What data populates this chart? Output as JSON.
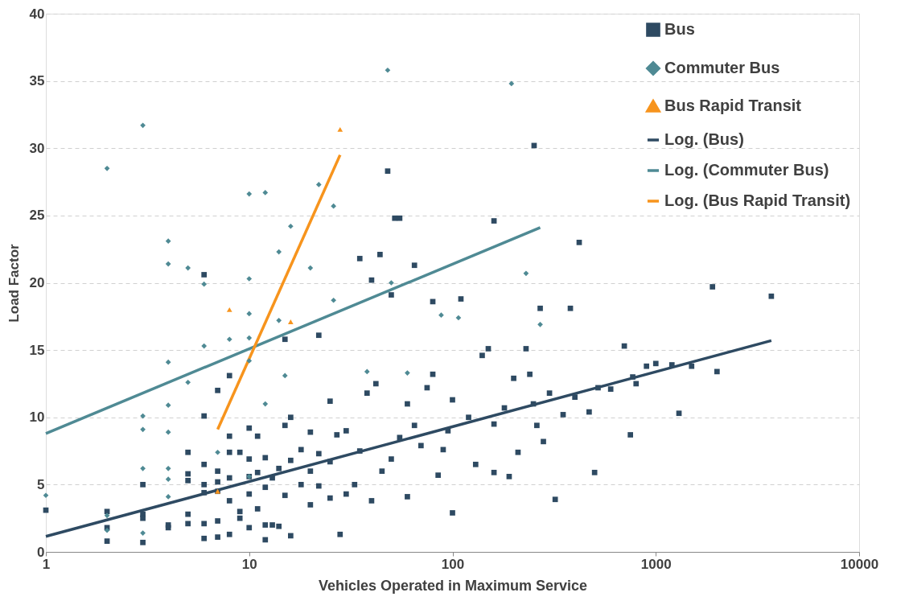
{
  "chart_data": {
    "type": "scatter",
    "xlabel": "Vehicles Operated in Maximum Service",
    "ylabel": "Load Factor",
    "log": "x",
    "xlim": [
      1,
      10000
    ],
    "xticks": [
      1,
      10,
      100,
      1000,
      10000
    ],
    "ylim": [
      0,
      40
    ],
    "yticks": [
      0,
      5,
      10,
      15,
      20,
      25,
      30,
      35,
      40
    ],
    "grid": "y",
    "legend": "top right",
    "series": [
      {
        "name": "Bus",
        "marker": "square",
        "color": "#2e4a62",
        "x": [
          1,
          2,
          2,
          2,
          3,
          3,
          3,
          3,
          4,
          4,
          5,
          5,
          5,
          5,
          5,
          6,
          6,
          6,
          6,
          6,
          6,
          6,
          7,
          7,
          7,
          7,
          7,
          7,
          8,
          8,
          8,
          8,
          8,
          8,
          9,
          9,
          9,
          10,
          10,
          10,
          10,
          10,
          11,
          11,
          11,
          12,
          12,
          12,
          12,
          13,
          13,
          14,
          14,
          15,
          15,
          15,
          16,
          16,
          16,
          18,
          18,
          20,
          20,
          20,
          22,
          22,
          22,
          25,
          25,
          25,
          27,
          28,
          30,
          30,
          33,
          35,
          35,
          38,
          40,
          40,
          42,
          44,
          45,
          48,
          50,
          50,
          52,
          55,
          55,
          60,
          60,
          65,
          65,
          70,
          75,
          80,
          80,
          85,
          90,
          95,
          100,
          100,
          110,
          120,
          130,
          140,
          150,
          160,
          160,
          160,
          180,
          190,
          200,
          210,
          230,
          240,
          250,
          252,
          260,
          270,
          280,
          300,
          320,
          350,
          380,
          400,
          420,
          470,
          500,
          520,
          600,
          700,
          750,
          770,
          800,
          900,
          1000,
          1200,
          1300,
          1500,
          1900,
          2000,
          3700
        ],
        "values": [
          3.1,
          3.0,
          1.8,
          0.8,
          2.8,
          2.5,
          0.7,
          5.0,
          2.0,
          1.8,
          7.4,
          5.8,
          5.3,
          2.8,
          2.1,
          20.6,
          10.1,
          6.5,
          5.0,
          4.4,
          2.1,
          1.0,
          12.0,
          6.0,
          5.2,
          4.5,
          2.3,
          1.1,
          13.1,
          8.6,
          7.4,
          5.5,
          3.8,
          1.3,
          7.4,
          3.0,
          2.5,
          9.2,
          6.9,
          5.6,
          4.3,
          1.8,
          8.6,
          5.9,
          3.2,
          7.0,
          4.8,
          2.0,
          0.9,
          5.5,
          2.0,
          6.2,
          1.9,
          15.8,
          9.4,
          4.2,
          10.0,
          6.8,
          1.2,
          7.6,
          5.0,
          8.9,
          6.0,
          3.5,
          16.1,
          7.3,
          4.9,
          11.2,
          6.7,
          4.0,
          8.7,
          1.3,
          9.0,
          4.3,
          5.0,
          21.8,
          7.5,
          11.8,
          20.2,
          3.8,
          12.5,
          22.1,
          6.0,
          28.3,
          19.1,
          6.9,
          24.8,
          24.8,
          8.5,
          11.0,
          4.1,
          21.3,
          9.4,
          7.9,
          12.2,
          18.6,
          13.2,
          5.7,
          7.6,
          9.0,
          11.3,
          2.9,
          18.8,
          10.0,
          6.5,
          14.6,
          15.1,
          24.6,
          9.5,
          5.9,
          10.7,
          5.6,
          12.9,
          7.4,
          15.1,
          13.2,
          11.0,
          30.2,
          9.4,
          18.1,
          8.2,
          11.8,
          3.9,
          10.2,
          18.1,
          11.5,
          23.0,
          10.4,
          5.9,
          12.2,
          12.1,
          15.3,
          8.7,
          13.0,
          12.5,
          13.8,
          14.0,
          13.9,
          10.3,
          13.8,
          19.7,
          13.4,
          19.0
        ]
      },
      {
        "name": "Commuter Bus",
        "marker": "diamond",
        "color": "#4f8a94",
        "x": [
          1,
          2,
          2,
          2,
          3,
          3,
          3,
          3,
          3,
          4,
          4,
          4,
          4,
          4,
          4,
          4,
          4,
          5,
          5,
          6,
          6,
          7,
          8,
          10,
          10,
          10,
          10,
          10,
          10,
          12,
          12,
          14,
          14,
          15,
          16,
          20,
          22,
          26,
          26,
          38,
          48,
          50,
          60,
          88,
          107,
          195,
          230,
          270
        ],
        "values": [
          4.2,
          28.5,
          2.7,
          1.6,
          31.7,
          10.1,
          9.1,
          6.2,
          1.4,
          23.1,
          21.4,
          14.1,
          10.9,
          8.9,
          6.2,
          5.4,
          4.1,
          21.1,
          12.6,
          19.9,
          15.3,
          7.4,
          15.8,
          26.6,
          20.3,
          17.7,
          15.9,
          14.2,
          5.6,
          26.7,
          11.0,
          22.3,
          17.2,
          13.1,
          24.2,
          21.1,
          27.3,
          25.7,
          18.7,
          13.4,
          35.8,
          20.0,
          13.3,
          17.6,
          17.4,
          34.8,
          20.7,
          16.9
        ]
      },
      {
        "name": "Bus Rapid Transit",
        "marker": "triangle",
        "color": "#f7941d",
        "x": [
          7,
          8,
          16,
          28
        ],
        "values": [
          4.5,
          18.0,
          17.1,
          31.4
        ]
      },
      {
        "name": "Log. (Bus)",
        "type": "line",
        "line_style": "solid",
        "color": "#2e4a62",
        "x": [
          1,
          3700
        ],
        "values": [
          1.15,
          15.7
        ]
      },
      {
        "name": "Log. (Commuter Bus)",
        "type": "line",
        "line_style": "solid",
        "color": "#4f8a94",
        "x": [
          1,
          270
        ],
        "values": [
          8.8,
          24.1
        ]
      },
      {
        "name": "Log. (Bus Rapid Transit)",
        "type": "line",
        "line_style": "solid",
        "color": "#f7941d",
        "x": [
          7,
          28
        ],
        "values": [
          9.1,
          29.5
        ]
      }
    ]
  }
}
